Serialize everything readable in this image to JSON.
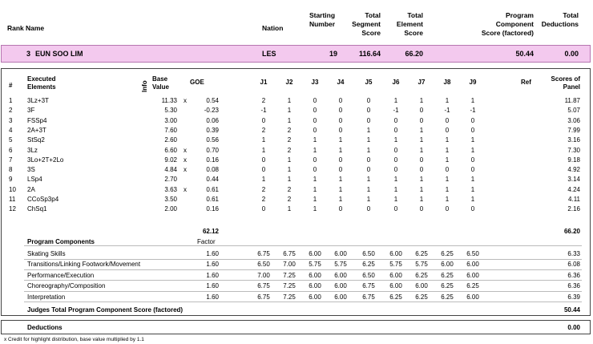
{
  "header": {
    "rank": "Rank",
    "name": "Name",
    "nation": "Nation",
    "starting_number": [
      "Starting",
      "Number"
    ],
    "total_segment_score": [
      "Total",
      "Segment",
      "Score"
    ],
    "total_element_score": [
      "Total",
      "Element",
      "Score"
    ],
    "program_component_score": [
      "Program",
      "Component",
      "Score (factored)"
    ],
    "total_deductions": [
      "Total",
      "Deductions"
    ]
  },
  "skater": {
    "rank": "3",
    "name": "EUN SOO LIM",
    "nation": "LES",
    "starting_number": "19",
    "total_segment_score": "116.64",
    "total_element_score": "66.20",
    "program_component_score": "50.44",
    "total_deductions": "0.00"
  },
  "elements_header": {
    "num": "#",
    "executed": [
      "Executed",
      "Elements"
    ],
    "info": "Info",
    "base": [
      "Base",
      "Value"
    ],
    "goe": "GOE",
    "judges": [
      "J1",
      "J2",
      "J3",
      "J4",
      "J5",
      "J6",
      "J7",
      "J8",
      "J9"
    ],
    "ref": "Ref",
    "scores": [
      "Scores of",
      "Panel"
    ]
  },
  "elements": [
    {
      "num": "1",
      "name": "3Lz+3T",
      "base": "11.33",
      "x": "x",
      "goe": "0.54",
      "j": [
        "2",
        "1",
        "0",
        "0",
        "0",
        "1",
        "1",
        "1",
        "1"
      ],
      "score": "11.87"
    },
    {
      "num": "2",
      "name": "3F",
      "base": "5.30",
      "x": "",
      "goe": "-0.23",
      "j": [
        "-1",
        "1",
        "0",
        "0",
        "0",
        "-1",
        "0",
        "-1",
        "-1"
      ],
      "score": "5.07"
    },
    {
      "num": "3",
      "name": "FSSp4",
      "base": "3.00",
      "x": "",
      "goe": "0.06",
      "j": [
        "0",
        "1",
        "0",
        "0",
        "0",
        "0",
        "0",
        "0",
        "0"
      ],
      "score": "3.06"
    },
    {
      "num": "4",
      "name": "2A+3T",
      "base": "7.60",
      "x": "",
      "goe": "0.39",
      "j": [
        "2",
        "2",
        "0",
        "0",
        "1",
        "0",
        "1",
        "0",
        "0"
      ],
      "score": "7.99"
    },
    {
      "num": "5",
      "name": "StSq2",
      "base": "2.60",
      "x": "",
      "goe": "0.56",
      "j": [
        "1",
        "2",
        "1",
        "1",
        "1",
        "1",
        "1",
        "1",
        "1"
      ],
      "score": "3.16"
    },
    {
      "num": "6",
      "name": "3Lz",
      "base": "6.60",
      "x": "x",
      "goe": "0.70",
      "j": [
        "1",
        "2",
        "1",
        "1",
        "1",
        "0",
        "1",
        "1",
        "1"
      ],
      "score": "7.30"
    },
    {
      "num": "7",
      "name": "3Lo+2T+2Lo",
      "base": "9.02",
      "x": "x",
      "goe": "0.16",
      "j": [
        "0",
        "1",
        "0",
        "0",
        "0",
        "0",
        "0",
        "1",
        "0"
      ],
      "score": "9.18"
    },
    {
      "num": "8",
      "name": "3S",
      "base": "4.84",
      "x": "x",
      "goe": "0.08",
      "j": [
        "0",
        "1",
        "0",
        "0",
        "0",
        "0",
        "0",
        "0",
        "0"
      ],
      "score": "4.92"
    },
    {
      "num": "9",
      "name": "LSp4",
      "base": "2.70",
      "x": "",
      "goe": "0.44",
      "j": [
        "1",
        "1",
        "1",
        "1",
        "1",
        "1",
        "1",
        "1",
        "1"
      ],
      "score": "3.14"
    },
    {
      "num": "10",
      "name": "2A",
      "base": "3.63",
      "x": "x",
      "goe": "0.61",
      "j": [
        "2",
        "2",
        "1",
        "1",
        "1",
        "1",
        "1",
        "1",
        "1"
      ],
      "score": "4.24"
    },
    {
      "num": "11",
      "name": "CCoSp3p4",
      "base": "3.50",
      "x": "",
      "goe": "0.61",
      "j": [
        "2",
        "2",
        "1",
        "1",
        "1",
        "1",
        "1",
        "1",
        "1"
      ],
      "score": "4.11"
    },
    {
      "num": "12",
      "name": "ChSq1",
      "base": "2.00",
      "x": "",
      "goe": "0.16",
      "j": [
        "0",
        "1",
        "1",
        "0",
        "0",
        "0",
        "0",
        "0",
        "0"
      ],
      "score": "2.16"
    }
  ],
  "elements_total": {
    "base": "62.12",
    "score": "66.20"
  },
  "components_header": {
    "title": "Program Components",
    "factor": "Factor"
  },
  "components": [
    {
      "name": "Skating Skills",
      "factor": "1.60",
      "j": [
        "6.75",
        "6.75",
        "6.00",
        "6.00",
        "6.50",
        "6.00",
        "6.25",
        "6.25",
        "6.50"
      ],
      "score": "6.33"
    },
    {
      "name": "Transitions/Linking Footwork/Movement",
      "factor": "1.60",
      "j": [
        "6.50",
        "7.00",
        "5.75",
        "5.75",
        "6.25",
        "5.75",
        "5.75",
        "6.00",
        "6.00"
      ],
      "score": "6.08"
    },
    {
      "name": "Performance/Execution",
      "factor": "1.60",
      "j": [
        "7.00",
        "7.25",
        "6.00",
        "6.00",
        "6.50",
        "6.00",
        "6.25",
        "6.25",
        "6.00"
      ],
      "score": "6.36"
    },
    {
      "name": "Choreography/Composition",
      "factor": "1.60",
      "j": [
        "6.75",
        "7.25",
        "6.00",
        "6.00",
        "6.75",
        "6.00",
        "6.00",
        "6.25",
        "6.25"
      ],
      "score": "6.36"
    },
    {
      "name": "Interpretation",
      "factor": "1.60",
      "j": [
        "6.75",
        "7.25",
        "6.00",
        "6.00",
        "6.75",
        "6.25",
        "6.25",
        "6.25",
        "6.00"
      ],
      "score": "6.39"
    }
  ],
  "components_total": {
    "label": "Judges Total Program Component Score (factored)",
    "score": "50.44"
  },
  "deductions": {
    "label": "Deductions",
    "value": "0.00"
  },
  "footnote": "x  Credit for highlight distribution, base value multiplied by 1.1",
  "colors": {
    "band_fill": "#f3c9ee",
    "band_border": "#b676b0"
  }
}
